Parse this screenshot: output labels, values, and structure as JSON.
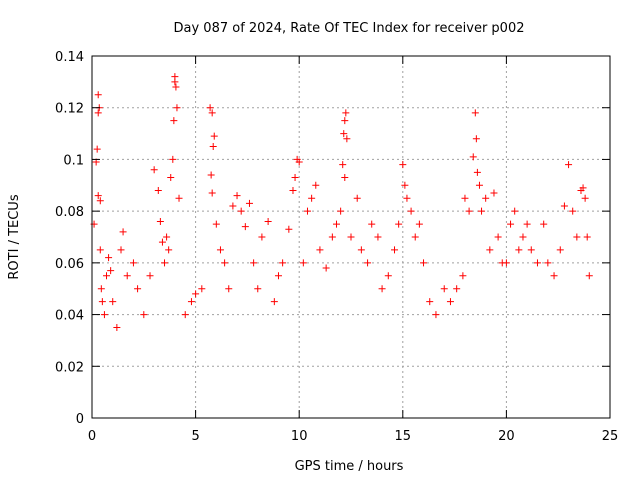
{
  "chart_data": {
    "type": "scatter",
    "title": "Day 087 of 2024, Rate Of TEC Index for receiver p002",
    "xlabel": "GPS time / hours",
    "ylabel": "ROTI / TECUs",
    "xlim": [
      0,
      25
    ],
    "ylim": [
      0,
      0.14
    ],
    "xticks": [
      0,
      5,
      10,
      15,
      20,
      25
    ],
    "yticks": [
      0,
      0.02,
      0.04,
      0.06,
      0.08,
      0.1,
      0.12,
      0.14
    ],
    "xtick_labels": [
      "0",
      "5",
      "10",
      "15",
      "20",
      "25"
    ],
    "ytick_labels": [
      "0",
      "0.02",
      "0.04",
      "0.06",
      "0.08",
      "0.1",
      "0.12",
      "0.14"
    ],
    "grid": true,
    "marker": "+",
    "marker_color": "#ff0000",
    "grid_color": "#a0a0a0",
    "series": [
      {
        "name": "ROTI",
        "points": [
          [
            0.1,
            0.075
          ],
          [
            0.2,
            0.099
          ],
          [
            0.3,
            0.125
          ],
          [
            0.3,
            0.118
          ],
          [
            0.35,
            0.12
          ],
          [
            0.25,
            0.104
          ],
          [
            0.3,
            0.086
          ],
          [
            0.4,
            0.084
          ],
          [
            0.4,
            0.065
          ],
          [
            0.45,
            0.05
          ],
          [
            0.5,
            0.045
          ],
          [
            0.6,
            0.04
          ],
          [
            0.7,
            0.055
          ],
          [
            0.8,
            0.062
          ],
          [
            0.9,
            0.057
          ],
          [
            1.0,
            0.045
          ],
          [
            1.2,
            0.035
          ],
          [
            1.4,
            0.065
          ],
          [
            1.5,
            0.072
          ],
          [
            1.7,
            0.055
          ],
          [
            2.0,
            0.06
          ],
          [
            2.2,
            0.05
          ],
          [
            2.5,
            0.04
          ],
          [
            2.8,
            0.055
          ],
          [
            3.0,
            0.096
          ],
          [
            3.2,
            0.088
          ],
          [
            3.3,
            0.076
          ],
          [
            3.4,
            0.068
          ],
          [
            3.5,
            0.06
          ],
          [
            3.6,
            0.07
          ],
          [
            3.7,
            0.065
          ],
          [
            3.8,
            0.093
          ],
          [
            3.9,
            0.1
          ],
          [
            3.95,
            0.115
          ],
          [
            4.0,
            0.13
          ],
          [
            4.0,
            0.132
          ],
          [
            4.05,
            0.128
          ],
          [
            4.1,
            0.12
          ],
          [
            4.2,
            0.085
          ],
          [
            4.5,
            0.04
          ],
          [
            4.8,
            0.045
          ],
          [
            5.0,
            0.048
          ],
          [
            5.3,
            0.05
          ],
          [
            5.7,
            0.12
          ],
          [
            5.8,
            0.118
          ],
          [
            5.85,
            0.105
          ],
          [
            5.9,
            0.109
          ],
          [
            5.75,
            0.094
          ],
          [
            5.8,
            0.087
          ],
          [
            6.0,
            0.075
          ],
          [
            6.2,
            0.065
          ],
          [
            6.4,
            0.06
          ],
          [
            6.6,
            0.05
          ],
          [
            6.8,
            0.082
          ],
          [
            7.0,
            0.086
          ],
          [
            7.2,
            0.08
          ],
          [
            7.4,
            0.074
          ],
          [
            7.6,
            0.083
          ],
          [
            7.8,
            0.06
          ],
          [
            8.0,
            0.05
          ],
          [
            8.2,
            0.07
          ],
          [
            8.5,
            0.076
          ],
          [
            8.8,
            0.045
          ],
          [
            9.0,
            0.055
          ],
          [
            9.2,
            0.06
          ],
          [
            9.5,
            0.073
          ],
          [
            9.7,
            0.088
          ],
          [
            9.8,
            0.093
          ],
          [
            9.9,
            0.1
          ],
          [
            10.0,
            0.099
          ],
          [
            10.2,
            0.06
          ],
          [
            10.4,
            0.08
          ],
          [
            10.6,
            0.085
          ],
          [
            10.8,
            0.09
          ],
          [
            11.0,
            0.065
          ],
          [
            11.3,
            0.058
          ],
          [
            11.6,
            0.07
          ],
          [
            11.8,
            0.075
          ],
          [
            12.0,
            0.08
          ],
          [
            12.1,
            0.098
          ],
          [
            12.15,
            0.11
          ],
          [
            12.2,
            0.115
          ],
          [
            12.25,
            0.118
          ],
          [
            12.3,
            0.108
          ],
          [
            12.2,
            0.093
          ],
          [
            12.5,
            0.07
          ],
          [
            12.8,
            0.085
          ],
          [
            13.0,
            0.065
          ],
          [
            13.3,
            0.06
          ],
          [
            13.5,
            0.075
          ],
          [
            13.8,
            0.07
          ],
          [
            14.0,
            0.05
          ],
          [
            14.3,
            0.055
          ],
          [
            14.6,
            0.065
          ],
          [
            14.8,
            0.075
          ],
          [
            15.0,
            0.098
          ],
          [
            15.1,
            0.09
          ],
          [
            15.2,
            0.085
          ],
          [
            15.4,
            0.08
          ],
          [
            15.6,
            0.07
          ],
          [
            15.8,
            0.075
          ],
          [
            16.0,
            0.06
          ],
          [
            16.3,
            0.045
          ],
          [
            16.6,
            0.04
          ],
          [
            17.0,
            0.05
          ],
          [
            17.3,
            0.045
          ],
          [
            17.6,
            0.05
          ],
          [
            17.9,
            0.055
          ],
          [
            18.0,
            0.085
          ],
          [
            18.2,
            0.08
          ],
          [
            18.4,
            0.101
          ],
          [
            18.5,
            0.118
          ],
          [
            18.55,
            0.108
          ],
          [
            18.6,
            0.095
          ],
          [
            18.7,
            0.09
          ],
          [
            18.8,
            0.08
          ],
          [
            19.0,
            0.085
          ],
          [
            19.2,
            0.065
          ],
          [
            19.4,
            0.087
          ],
          [
            19.6,
            0.07
          ],
          [
            19.8,
            0.06
          ],
          [
            20.0,
            0.06
          ],
          [
            20.2,
            0.075
          ],
          [
            20.4,
            0.08
          ],
          [
            20.6,
            0.065
          ],
          [
            20.8,
            0.07
          ],
          [
            21.0,
            0.075
          ],
          [
            21.2,
            0.065
          ],
          [
            21.5,
            0.06
          ],
          [
            21.8,
            0.075
          ],
          [
            22.0,
            0.06
          ],
          [
            22.3,
            0.055
          ],
          [
            22.6,
            0.065
          ],
          [
            22.8,
            0.082
          ],
          [
            23.0,
            0.098
          ],
          [
            23.2,
            0.08
          ],
          [
            23.4,
            0.07
          ],
          [
            23.6,
            0.088
          ],
          [
            23.7,
            0.089
          ],
          [
            23.8,
            0.085
          ],
          [
            23.9,
            0.07
          ],
          [
            24.0,
            0.055
          ]
        ]
      }
    ]
  }
}
